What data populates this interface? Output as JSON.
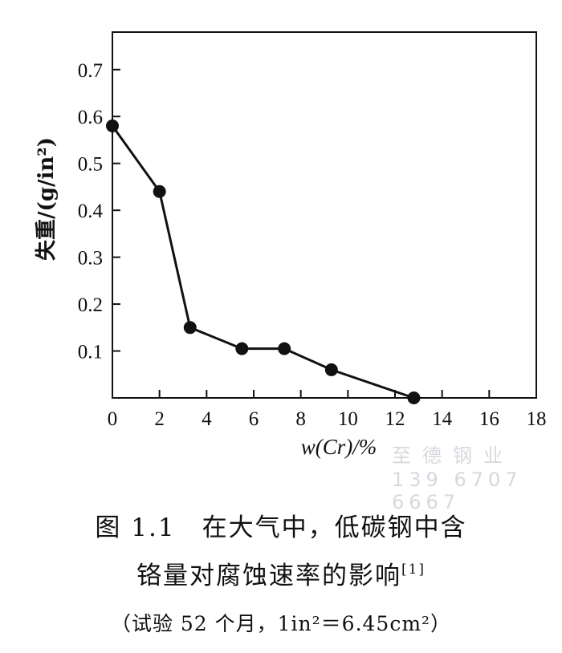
{
  "chart_data": {
    "type": "line",
    "x": [
      0,
      2,
      3.3,
      5.5,
      7.3,
      9.3,
      12.8
    ],
    "y": [
      0.58,
      0.44,
      0.15,
      0.105,
      0.105,
      0.06,
      0.0
    ],
    "xlim": [
      0,
      18
    ],
    "ylim": [
      0,
      0.78
    ],
    "xticks": [
      "0",
      "2",
      "4",
      "6",
      "8",
      "10",
      "12",
      "14",
      "16",
      "18"
    ],
    "yticks": [
      "0.1",
      "0.2",
      "0.3",
      "0.4",
      "0.5",
      "0.6",
      "0.7"
    ],
    "xlabel": "w(Cr)/%",
    "ylabel": "失重/(g/in²)",
    "grid": false,
    "marker_color": "#111111",
    "line_color": "#111111"
  },
  "watermark": {
    "company": "至德钢业",
    "phone": "139 6707 6667"
  },
  "caption": {
    "line1": "图 1.1　在大气中，低碳钢中含",
    "line2": "铬量对腐蚀速率的影响",
    "ref": "[1]",
    "line3": "（试验 52 个月，1in²＝6.45cm²）"
  }
}
